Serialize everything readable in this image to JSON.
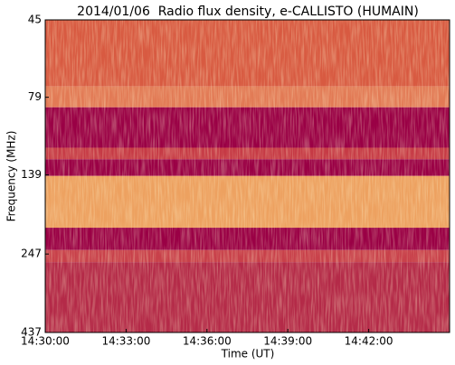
{
  "chart_data": {
    "type": "spectrogram",
    "title": "2014/01/06  Radio flux density, e-CALLISTO (HUMAIN)",
    "x_label": "Time (UT)",
    "y_label": "Frequency (MHz)",
    "xlim": [
      "14:30:00",
      "14:45:00"
    ],
    "xticks": [
      "14:30:00",
      "14:33:00",
      "14:36:00",
      "14:39:00",
      "14:42:00"
    ],
    "ylim": [
      45,
      437
    ],
    "yticks": [
      45,
      79,
      139,
      247,
      437
    ],
    "y_log": true,
    "y_inverted": true,
    "bands": [
      {
        "from": 45,
        "to": 73,
        "color": "#d85a41"
      },
      {
        "from": 73,
        "to": 85,
        "color": "#e27a55"
      },
      {
        "from": 85,
        "to": 114,
        "color": "#9a0045"
      },
      {
        "from": 114,
        "to": 124,
        "color": "#c63a45"
      },
      {
        "from": 124,
        "to": 140,
        "color": "#9a0045"
      },
      {
        "from": 140,
        "to": 204,
        "color": "#eda160"
      },
      {
        "from": 204,
        "to": 240,
        "color": "#9a0045"
      },
      {
        "from": 240,
        "to": 262,
        "color": "#c8404a"
      },
      {
        "from": 262,
        "to": 437,
        "color": "#b42a48"
      }
    ]
  }
}
